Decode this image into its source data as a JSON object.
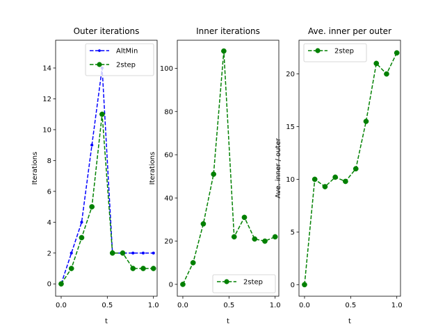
{
  "chart_data": [
    {
      "type": "line",
      "title": "Outer iterations",
      "xlabel": "t",
      "ylabel": "Iterations",
      "xlim": [
        -0.06,
        1.04
      ],
      "ylim": [
        -0.8,
        15.8
      ],
      "xticks": [
        0.0,
        0.5,
        1.0
      ],
      "xticklabels": [
        "0.0",
        "0.5",
        "1.0"
      ],
      "yticks": [
        0,
        2,
        4,
        6,
        8,
        10,
        12,
        14
      ],
      "yticklabels": [
        "0",
        "2",
        "4",
        "6",
        "8",
        "10",
        "12",
        "14"
      ],
      "legend_position": "upper-right",
      "series": [
        {
          "name": "AltMin",
          "color": "#0000ff",
          "marker": "small-dot",
          "x": [
            0.0,
            0.111,
            0.222,
            0.333,
            0.444,
            0.556,
            0.667,
            0.778,
            0.889,
            1.0
          ],
          "y": [
            0,
            2,
            4,
            9,
            14,
            2,
            2,
            2,
            2,
            2
          ]
        },
        {
          "name": "2step",
          "color": "#008000",
          "marker": "circle",
          "x": [
            0.0,
            0.111,
            0.222,
            0.333,
            0.444,
            0.556,
            0.667,
            0.778,
            0.889,
            1.0
          ],
          "y": [
            0,
            1,
            3,
            5,
            11,
            2,
            2,
            1,
            1,
            1
          ]
        }
      ]
    },
    {
      "type": "line",
      "title": "Inner iterations",
      "xlabel": "t",
      "ylabel": "Iterations",
      "xlim": [
        -0.06,
        1.04
      ],
      "ylim": [
        -5.5,
        113
      ],
      "xticks": [
        0.0,
        0.5,
        1.0
      ],
      "xticklabels": [
        "0.0",
        "0.5",
        "1.0"
      ],
      "yticks": [
        0,
        20,
        40,
        60,
        80,
        100
      ],
      "yticklabels": [
        "0",
        "20",
        "40",
        "60",
        "80",
        "100"
      ],
      "legend_position": "lower-right",
      "series": [
        {
          "name": "2step",
          "color": "#008000",
          "marker": "circle",
          "x": [
            0.0,
            0.111,
            0.222,
            0.333,
            0.444,
            0.556,
            0.667,
            0.778,
            0.889,
            1.0
          ],
          "y": [
            0,
            10,
            28,
            51,
            108,
            22,
            31,
            21,
            20,
            22
          ]
        }
      ]
    },
    {
      "type": "line",
      "title": "Ave. inner per outer",
      "xlabel": "t",
      "ylabel": "Ave. inner / outer",
      "xlim": [
        -0.06,
        1.04
      ],
      "ylim": [
        -1.1,
        23.2
      ],
      "xticks": [
        0.0,
        0.5,
        1.0
      ],
      "xticklabels": [
        "0.0",
        "0.5",
        "1.0"
      ],
      "yticks": [
        0,
        5,
        10,
        15,
        20
      ],
      "yticklabels": [
        "0",
        "5",
        "10",
        "15",
        "20"
      ],
      "legend_position": "upper-left",
      "series": [
        {
          "name": "2step",
          "color": "#008000",
          "marker": "circle",
          "x": [
            0.0,
            0.111,
            0.222,
            0.333,
            0.444,
            0.556,
            0.667,
            0.778,
            0.889,
            1.0
          ],
          "y": [
            0,
            10,
            9.3,
            10.2,
            9.8,
            11,
            15.5,
            21,
            20,
            22
          ]
        }
      ]
    }
  ]
}
